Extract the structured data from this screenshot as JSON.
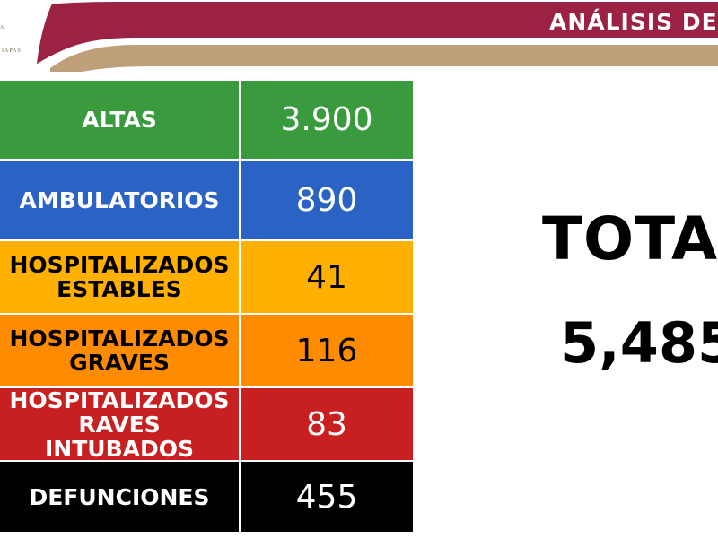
{
  "header": {
    "title": "ANÁLISIS DE",
    "logo_text_top": "A",
    "logo_text_bottom": "IAPAS",
    "colors": {
      "maroon": "#9b2242",
      "gold": "#bfa07a"
    }
  },
  "table": {
    "rows": [
      {
        "label": "ALTAS",
        "value": "3.900",
        "color": "#3a9a3e"
      },
      {
        "label": "AMBULATORIOS",
        "value": "890",
        "color": "#2a63c4"
      },
      {
        "label": "HOSPITALIZADOS\nESTABLES",
        "value": "41",
        "color": "#ffb000"
      },
      {
        "label": "HOSPITALIZADOS\nGRAVES",
        "value": "116",
        "color": "#ff8c00"
      },
      {
        "label": "HOSPITALIZADOS\nRAVES INTUBADOS",
        "value": "83",
        "color": "#c82020"
      },
      {
        "label": "DEFUNCIONES",
        "value": "455",
        "color": "#000000"
      }
    ]
  },
  "total": {
    "label": "TOTA",
    "value": "5,485"
  }
}
